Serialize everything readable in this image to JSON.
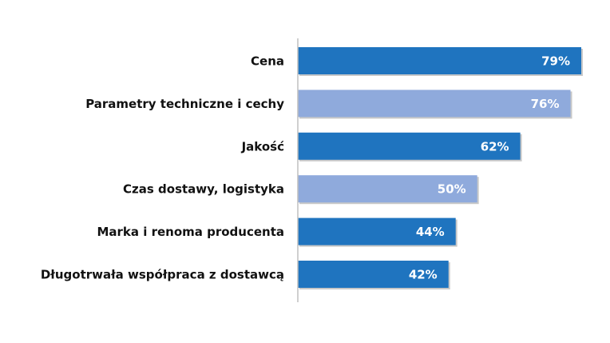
{
  "chart_data": {
    "type": "bar",
    "orientation": "horizontal",
    "categories": [
      "Cena",
      "Parametry techniczne i cechy",
      "Jakość",
      "Czas dostawy, logistyka",
      "Marka i renoma producenta",
      "Długotrwała współpraca z dostawcą"
    ],
    "values": [
      79,
      76,
      62,
      50,
      44,
      42
    ],
    "value_labels": [
      "79%",
      "76%",
      "62%",
      "50%",
      "44%",
      "42%"
    ],
    "bar_colors": [
      "#1f74bf",
      "#8faadc",
      "#1f74bf",
      "#8faadc",
      "#1f74bf",
      "#1f74bf"
    ],
    "title": "",
    "xlabel": "",
    "ylabel": "",
    "xlim": [
      0,
      100
    ],
    "grid": false,
    "legend": "none"
  },
  "colors": {
    "axis": "#bfbfbf",
    "bar_shadow": "#c8c8c8"
  }
}
